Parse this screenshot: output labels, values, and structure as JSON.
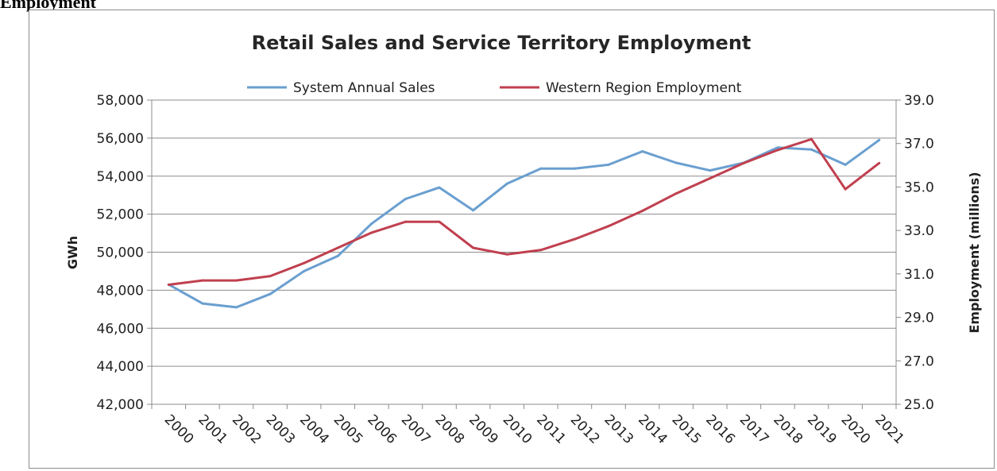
{
  "page": {
    "heading": "Employment"
  },
  "colors": {
    "sales": "#6a9fd0",
    "employment": "#c0404f",
    "grid": "#8c8c8c",
    "axis": "#8c8c8c"
  },
  "chart_data": {
    "type": "line",
    "title": "Retail Sales and Service Territory Employment",
    "ylabel": "GWh",
    "y2label": "Employment (millions)",
    "categories": [
      "2000",
      "2001",
      "2002",
      "2003",
      "2004",
      "2005",
      "2006",
      "2007",
      "2008",
      "2009",
      "2010",
      "2011",
      "2012",
      "2013",
      "2014",
      "2015",
      "2016",
      "2017",
      "2018",
      "2019",
      "2020",
      "2021"
    ],
    "ylim": [
      42000,
      58000
    ],
    "y_ticks": [
      42000,
      44000,
      46000,
      48000,
      50000,
      52000,
      54000,
      56000,
      58000
    ],
    "y_tick_labels": [
      "42,000",
      "44,000",
      "46,000",
      "48,000",
      "50,000",
      "52,000",
      "54,000",
      "56,000",
      "58,000"
    ],
    "y2lim": [
      25.0,
      39.0
    ],
    "y2_ticks": [
      25,
      27,
      29,
      31,
      33,
      35,
      37,
      39
    ],
    "y2_tick_labels": [
      "25.0",
      "27.0",
      "29.0",
      "31.0",
      "33.0",
      "35.0",
      "37.0",
      "39.0"
    ],
    "grid": true,
    "legend_position": "top",
    "series": [
      {
        "name": "System Annual Sales",
        "axis": "left",
        "color": "#6a9fd0",
        "values": [
          48300,
          47300,
          47100,
          47800,
          49000,
          49800,
          51500,
          52800,
          53400,
          52200,
          53600,
          54400,
          54400,
          54600,
          55300,
          54700,
          54300,
          54700,
          55500,
          55400,
          54600,
          55900
        ]
      },
      {
        "name": "Western Region Employment",
        "axis": "right",
        "color": "#c0404f",
        "values": [
          30.5,
          30.7,
          30.7,
          30.9,
          31.5,
          32.2,
          32.9,
          33.4,
          33.4,
          32.2,
          31.9,
          32.1,
          32.6,
          33.2,
          33.9,
          34.7,
          35.4,
          36.1,
          36.7,
          37.2,
          34.9,
          36.1
        ]
      }
    ]
  }
}
